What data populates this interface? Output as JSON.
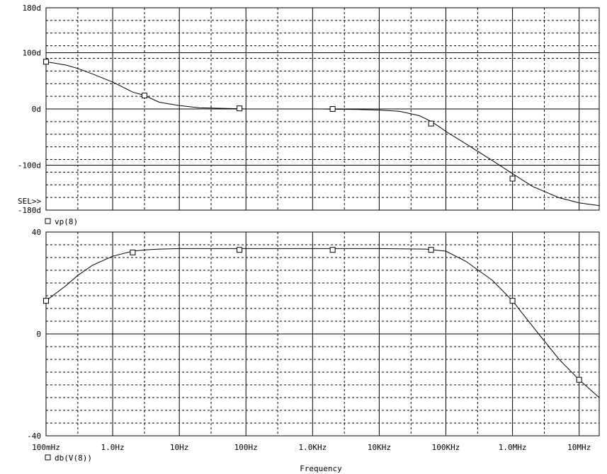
{
  "chart_data": [
    {
      "type": "line",
      "title": "",
      "xlabel": "Frequency",
      "ylabel": "",
      "x_scale": "log",
      "xlim": [
        0.1,
        20000000
      ],
      "ylim": [
        -180,
        180
      ],
      "ytick_labels": [
        "180d",
        "100d",
        "0d",
        "-100d",
        "-180d"
      ],
      "y_ticks": [
        180,
        100,
        0,
        -100,
        -180
      ],
      "sel_marker": "SEL>>",
      "grid": true,
      "legend_placement": "bottom-left",
      "series": [
        {
          "name": "vp(8)",
          "segments": [
            {
              "x": [
                0.1,
                0.2,
                0.3,
                0.5,
                1.0,
                2.0,
                3.0,
                5.0,
                10,
                20,
                50,
                80,
                100
              ],
              "y": [
                84,
                78,
                72,
                62,
                48,
                30,
                24,
                12,
                6,
                2,
                1,
                0.5,
                0
              ]
            },
            {
              "x": [
                1300,
                2000,
                5000,
                10000,
                20000,
                40000,
                60000,
                80000,
                100000,
                200000,
                500000,
                1000000,
                2000000,
                5000000,
                10000000,
                20000000
              ],
              "y": [
                0,
                -0.5,
                -1,
                -2,
                -4,
                -12,
                -22,
                -32,
                -40,
                -62,
                -92,
                -115,
                -138,
                -158,
                -167,
                -172
              ]
            }
          ],
          "markers": {
            "x": [
              0.1,
              3.0,
              80,
              2000,
              60000,
              1000000
            ],
            "y": [
              84,
              24,
              1,
              0,
              -26,
              -124
            ]
          }
        }
      ]
    },
    {
      "type": "line",
      "title": "",
      "xlabel": "Frequency",
      "ylabel": "",
      "x_scale": "log",
      "xlim": [
        0.1,
        20000000
      ],
      "ylim": [
        -40,
        40
      ],
      "ytick_labels": [
        "40",
        "0",
        "-40"
      ],
      "y_ticks": [
        40,
        0,
        -40
      ],
      "x_ticks": [
        0.1,
        1,
        10,
        100,
        1000,
        10000,
        100000,
        1000000,
        10000000
      ],
      "xtick_labels": [
        "100mHz",
        "1.0Hz",
        "10Hz",
        "100Hz",
        "1.0KHz",
        "10KHz",
        "100KHz",
        "1.0MHz",
        "10MHz"
      ],
      "grid": true,
      "legend_placement": "bottom-left",
      "series": [
        {
          "name": "db(V(8))",
          "x": [
            0.1,
            0.2,
            0.3,
            0.5,
            1.0,
            2.0,
            3.0,
            5.0,
            10,
            100,
            1000,
            10000,
            50000,
            100000,
            200000,
            500000,
            1000000,
            2000000,
            5000000,
            10000000,
            20000000
          ],
          "y": [
            13,
            19,
            23,
            27,
            30.5,
            32.5,
            33,
            33.3,
            33.5,
            33.5,
            33.5,
            33.5,
            33.3,
            32.5,
            28.5,
            21,
            13,
            3,
            -10,
            -18,
            -25
          ],
          "markers": {
            "x": [
              0.1,
              2.0,
              80,
              2000,
              60000,
              1000000,
              10000000
            ],
            "y": [
              13,
              32,
              33,
              33,
              33,
              13,
              -18
            ]
          }
        }
      ]
    }
  ]
}
